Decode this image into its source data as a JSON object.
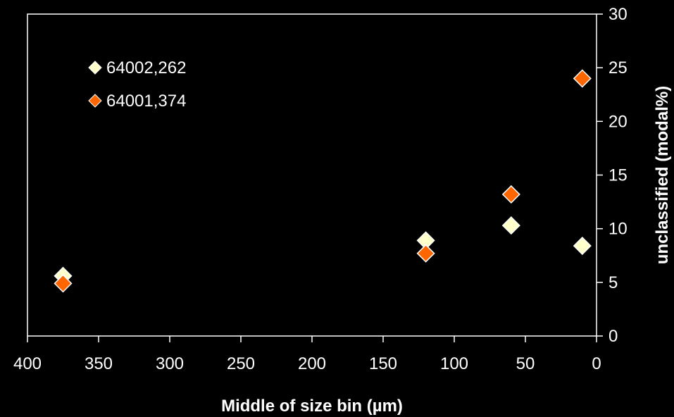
{
  "chart_data": {
    "type": "scatter",
    "xlabel": "Middle of size bin (µm)",
    "ylabel": "unclassified (modal%)",
    "xlim": [
      400,
      0
    ],
    "ylim": [
      0,
      30
    ],
    "x_reversed": true,
    "x_ticks": [
      "400",
      "350",
      "300",
      "250",
      "200",
      "150",
      "100",
      "50",
      "0"
    ],
    "y_ticks": [
      "0",
      "5",
      "10",
      "15",
      "20",
      "25",
      "30"
    ],
    "y_axis_side": "right",
    "grid": false,
    "legend_position": "top-left",
    "background": "#000000",
    "series": [
      {
        "name": "64002,262",
        "color": "#ffffcc",
        "marker": "diamond",
        "points": [
          {
            "x": 375,
            "y": 5.6
          },
          {
            "x": 120,
            "y": 8.9
          },
          {
            "x": 60,
            "y": 10.3
          },
          {
            "x": 10,
            "y": 8.4
          }
        ]
      },
      {
        "name": "64001,374",
        "color": "#ff6600",
        "marker": "diamond",
        "points": [
          {
            "x": 375,
            "y": 4.9
          },
          {
            "x": 120,
            "y": 7.7
          },
          {
            "x": 60,
            "y": 13.2
          },
          {
            "x": 10,
            "y": 24.0
          }
        ]
      }
    ]
  }
}
